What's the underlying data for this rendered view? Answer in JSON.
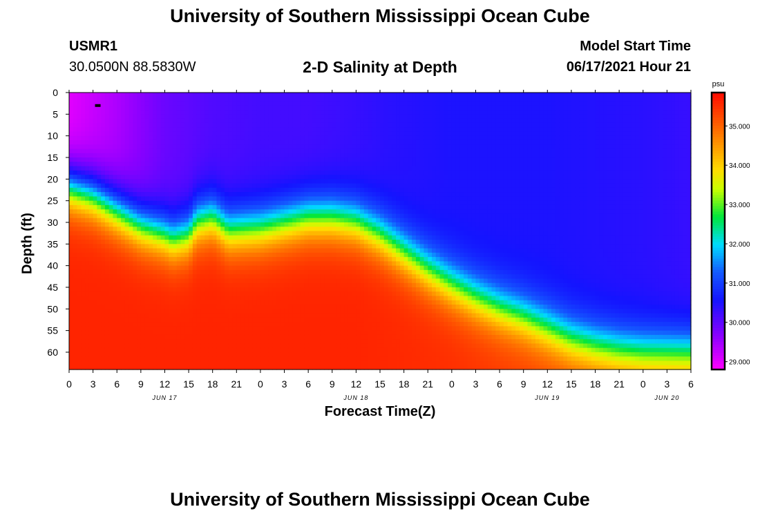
{
  "header": {
    "main_title": "University of Southern Mississippi Ocean Cube",
    "station_id": "USMR1",
    "station_coords": "30.0500N  88.5830W",
    "subtitle": "2-D Salinity at Depth",
    "model_start_label": "Model Start Time",
    "model_start_value": "06/17/2021 Hour 21"
  },
  "footer": {
    "title": "University of Southern Mississippi Ocean Cube"
  },
  "chart_data": {
    "type": "heatmap",
    "title": "2-D Salinity at Depth",
    "xlabel": "Forecast Time(Z)",
    "ylabel": "Depth (ft)",
    "x_hours_range": [
      0,
      78
    ],
    "x_tick_hours": [
      0,
      3,
      6,
      9,
      12,
      15,
      18,
      21,
      24,
      27,
      30,
      33,
      36,
      39,
      42,
      45,
      48,
      51,
      54,
      57,
      60,
      63,
      66,
      69,
      72,
      75,
      78
    ],
    "x_tick_labels": [
      "0",
      "3",
      "6",
      "9",
      "12",
      "15",
      "18",
      "21",
      "0",
      "3",
      "6",
      "9",
      "12",
      "15",
      "18",
      "21",
      "0",
      "3",
      "6",
      "9",
      "12",
      "15",
      "18",
      "21",
      "0",
      "3",
      "6"
    ],
    "date_labels": [
      {
        "hour": 12,
        "text": "JUN 17"
      },
      {
        "hour": 36,
        "text": "JUN 18"
      },
      {
        "hour": 60,
        "text": "JUN 19"
      },
      {
        "hour": 75,
        "text": "JUN 20"
      }
    ],
    "y_range_ft": [
      0,
      64
    ],
    "y_tick_values": [
      0,
      5,
      10,
      15,
      20,
      25,
      30,
      35,
      40,
      45,
      50,
      55,
      60
    ],
    "y_tick_labels": [
      "0",
      "5",
      "10",
      "15",
      "20",
      "25",
      "30",
      "35",
      "40",
      "45",
      "50",
      "55",
      "60"
    ],
    "colorbar": {
      "unit": "psu",
      "range": [
        28.8,
        35.85
      ],
      "ticks": [
        29,
        30,
        31,
        32,
        33,
        34,
        35
      ],
      "tick_labels": [
        "29.000",
        "30.000",
        "31.000",
        "32.000",
        "33.000",
        "34.000",
        "35.000"
      ]
    },
    "surface_salinity_psu": {
      "hours": [
        0,
        6,
        12,
        15,
        18,
        24,
        30,
        36,
        40,
        48,
        60,
        72,
        78
      ],
      "values": [
        29.0,
        29.4,
        29.9,
        30.0,
        30.1,
        30.2,
        30.2,
        30.3,
        30.4,
        30.5,
        30.5,
        30.4,
        30.3
      ]
    },
    "deep_salinity_psu": {
      "hours": [
        0,
        12,
        24,
        36,
        48,
        60,
        72,
        78
      ],
      "values": [
        35.6,
        35.6,
        35.6,
        35.6,
        35.5,
        35.3,
        35.1,
        35.0
      ]
    },
    "halocline_center_depth_ft": {
      "hours": [
        0,
        3,
        6,
        9,
        12,
        13,
        15,
        16,
        18,
        20,
        24,
        30,
        33,
        36,
        39,
        42,
        45,
        48,
        51,
        54,
        57,
        60,
        63,
        66,
        69,
        72,
        75,
        78
      ],
      "values": [
        22,
        24,
        27.5,
        31,
        33,
        34,
        33,
        30,
        29,
        32,
        31.5,
        29,
        29,
        30,
        33,
        37,
        41,
        44.5,
        47.5,
        50,
        52,
        54.5,
        57,
        58.5,
        59.5,
        60,
        60,
        60
      ]
    },
    "halocline_half_width_ft": 6,
    "marker": {
      "hour": 3.6,
      "depth_ft": 3
    }
  }
}
